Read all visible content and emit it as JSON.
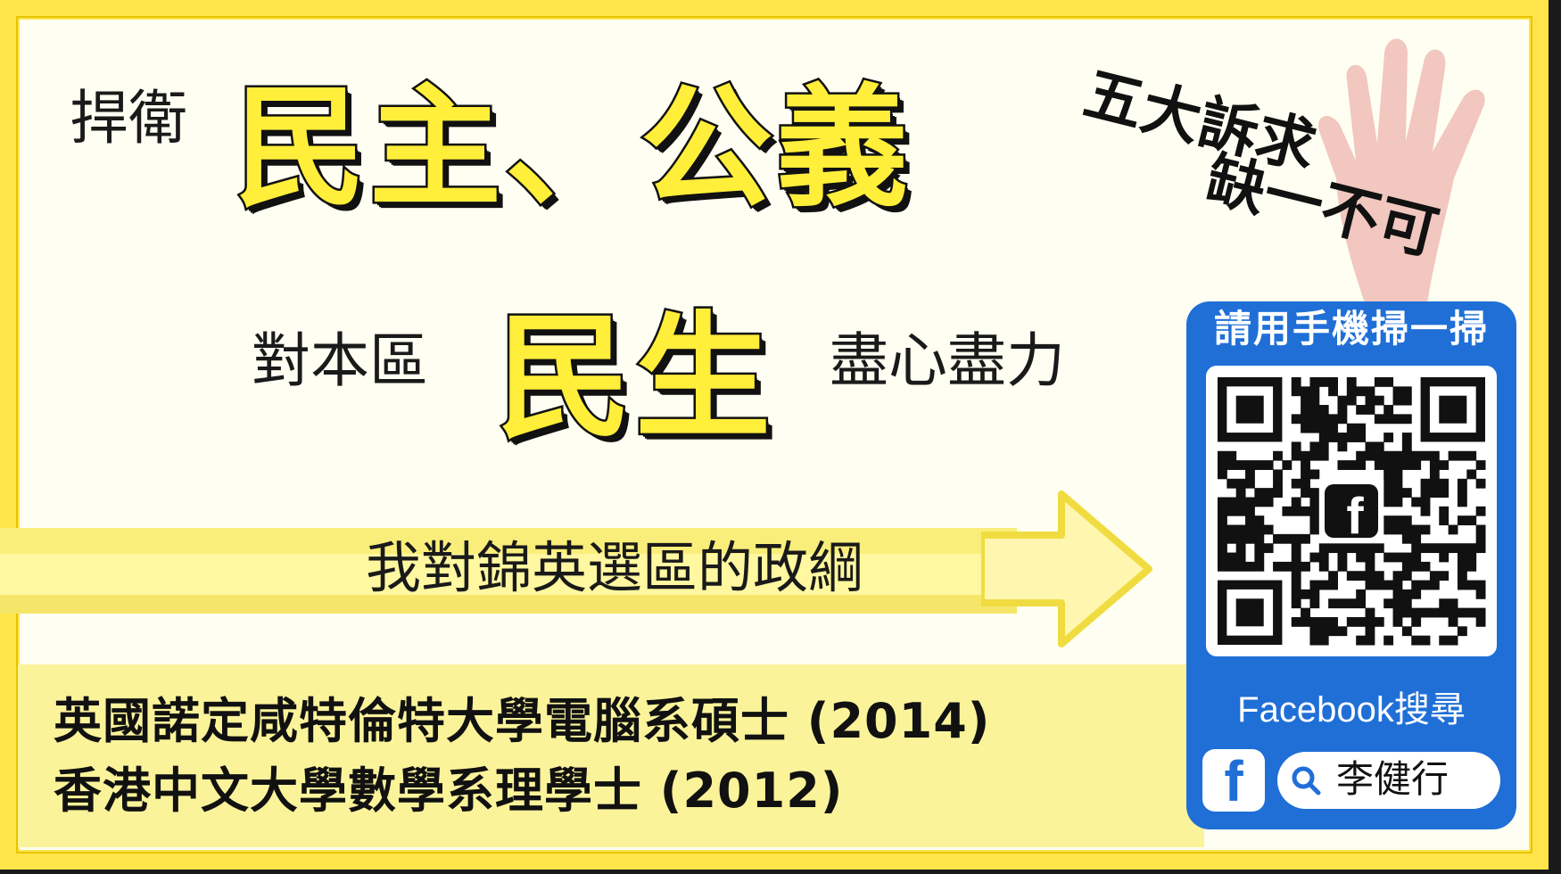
{
  "headline": {
    "prefix": "捍衛",
    "main": "民主、公義"
  },
  "second_line": {
    "prefix": "對本區",
    "main": "民生",
    "suffix": "盡心盡力"
  },
  "platform_banner": "我對錦英選區的政綱",
  "credentials": [
    "英國諾定咸特倫特大學電腦系碩士 (2014)",
    "香港中文大學數學系理學士 (2012)"
  ],
  "slogan": {
    "line1": "五大訴求",
    "line2": "缺一不可"
  },
  "qr_panel": {
    "title": "請用手機掃一掃",
    "search_label": "Facebook搜尋",
    "fb_glyph": "f",
    "search_name": "李健行"
  },
  "colors": {
    "border_yellow": "#ffe54a",
    "headline_yellow": "#ffee3a",
    "qr_blue": "#1f6fd6",
    "hand_pink": "#e8a9a2"
  },
  "icons": [
    "raised-hand-icon",
    "arrow-right-icon",
    "qr-code-icon",
    "facebook-icon",
    "magnifier-icon"
  ]
}
